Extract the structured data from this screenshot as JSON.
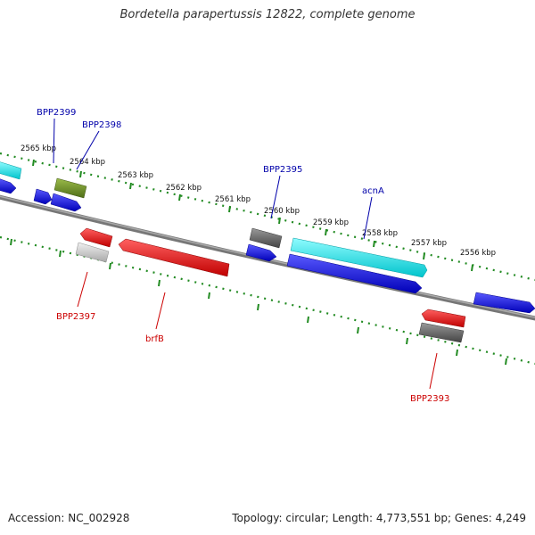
{
  "title": "Bordetella parapertussis 12822, complete genome",
  "footer": {
    "accession": "Accession: NC_002928",
    "summary": "Topology: circular; Length: 4,773,551 bp; Genes: 4,249"
  },
  "colors": {
    "backbone": "#888888",
    "tick": "#228B22",
    "label_blue": "#0000aa",
    "label_red": "#cc0000",
    "blue": "#0a0af0",
    "cyan": "#00e8ee",
    "red": "#ee1111",
    "olive": "#6b8e23",
    "darkgray": "#666666",
    "lightgray": "#c8c8c8"
  },
  "ticks": [
    "2565 kbp",
    "2564 kbp",
    "2563 kbp",
    "2562 kbp",
    "2561 kbp",
    "2560 kbp",
    "2559 kbp",
    "2558 kbp",
    "2557 kbp",
    "2556 kbp"
  ],
  "gene_labels": {
    "bpp2399": "BPP2399",
    "bpp2398": "BPP2398",
    "bpp2395": "BPP2395",
    "acnA": "acnA",
    "bpp2397": "BPP2397",
    "brfB": "brfB",
    "bpp2393": "BPP2393"
  }
}
